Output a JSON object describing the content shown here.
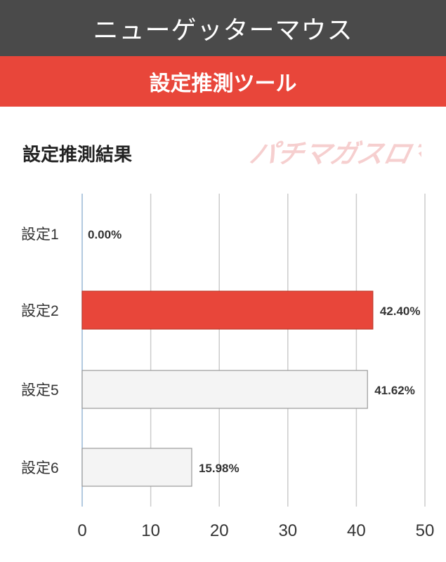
{
  "app_bar": {
    "title": "ニューゲッターマウス"
  },
  "tool_bar": {
    "title": "設定推測ツール"
  },
  "section": {
    "title": "設定推測結果"
  },
  "brand": {
    "logo_text": "パチマガスロマガ"
  },
  "colors": {
    "app_bar": "#4a4a4a",
    "tool_bar": "#e8463a",
    "highlight_bar": "#e8463a",
    "normal_bar": "#f4f4f4",
    "bar_border": "#9a9a9a",
    "grid": "#cccccc",
    "logo": "#f6cfcf"
  },
  "chart_data": {
    "type": "bar",
    "orientation": "horizontal",
    "categories": [
      "設定1",
      "設定2",
      "設定5",
      "設定6"
    ],
    "values": [
      0.0,
      42.4,
      41.62,
      15.98
    ],
    "value_labels": [
      "0.00%",
      "42.40%",
      "41.62%",
      "15.98%"
    ],
    "highlight_index": 1,
    "xlim": [
      0,
      50
    ],
    "xticks": [
      0,
      10,
      20,
      30,
      40,
      50
    ],
    "grid": true
  }
}
